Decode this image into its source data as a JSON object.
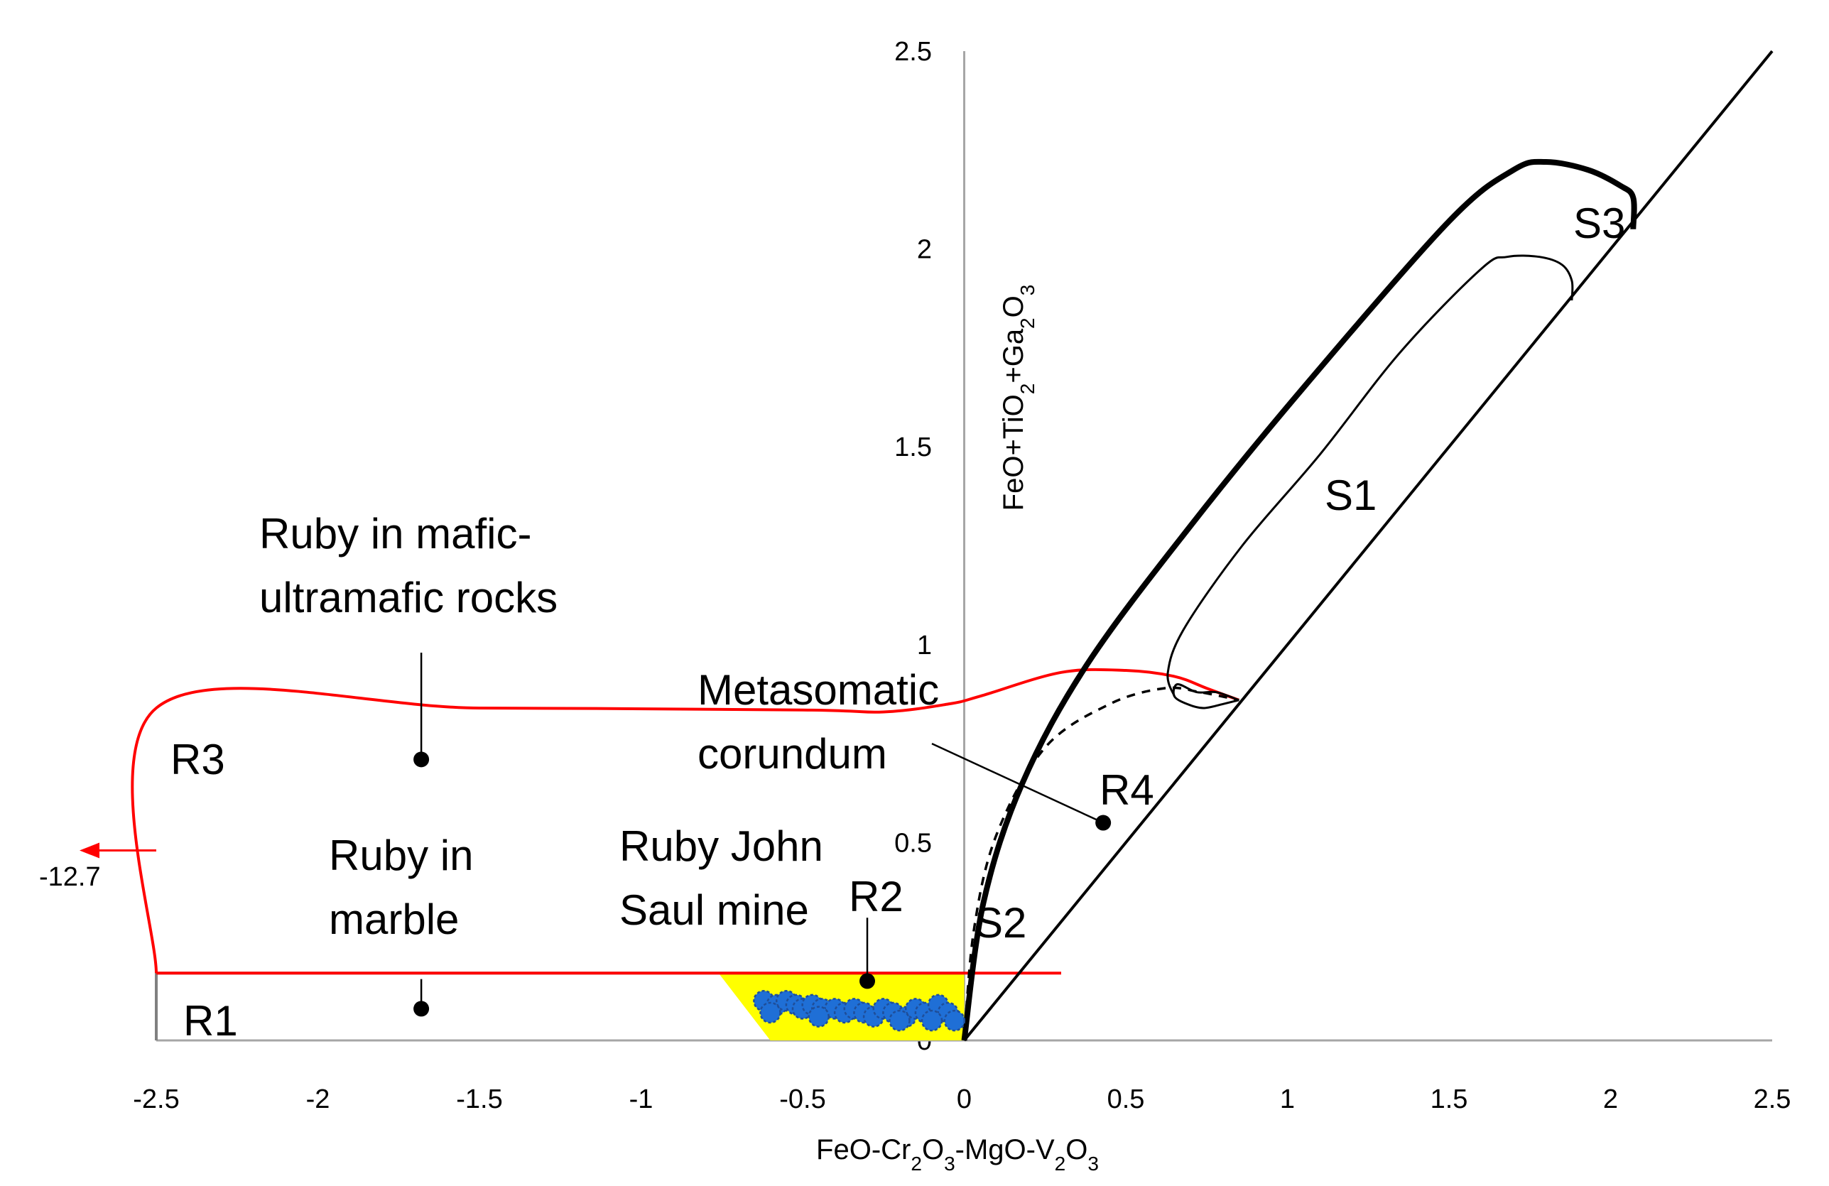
{
  "chart_data": {
    "type": "scatter",
    "title": "",
    "xlabel": {
      "parts": [
        "FeO-Cr",
        "2",
        "O",
        "3",
        "-MgO-V",
        "2",
        "O",
        "3"
      ]
    },
    "ylabel": {
      "parts": [
        "FeO+TiO",
        "2",
        "+Ga",
        "2",
        "O",
        "3"
      ]
    },
    "xlim": [
      -2.5,
      2.5
    ],
    "ylim": [
      0,
      2.5
    ],
    "x_ticks": [
      "-2.5",
      "-2",
      "-1.5",
      "-1",
      "-0.5",
      "0",
      "0.5",
      "1",
      "1.5",
      "2",
      "2.5"
    ],
    "y_ticks": [
      "0",
      "0.5",
      "1",
      "1.5",
      "2",
      "2.5"
    ],
    "grid": false,
    "colors": {
      "fields": "#000000",
      "r3": "#ff0000",
      "r1": "#808080",
      "r2_fill": "#ffff00",
      "points": "#1f6fd6",
      "points_edge": "#1f4e99"
    },
    "field_labels": {
      "R1": "R1",
      "R2": "R2",
      "R3": "R3",
      "R4": "R4",
      "S1": "S1",
      "S2": "S2",
      "S3": "S3"
    },
    "offscale_arrow": {
      "label": "-12.7",
      "y": 0.48,
      "direction": "left"
    },
    "annotations": {
      "mafic": [
        "Ruby in mafic-",
        "ultramafic rocks"
      ],
      "marble": [
        "Ruby in",
        "marble"
      ],
      "metasomatic": [
        "Metasomatic",
        "corundum"
      ],
      "john_saul": [
        "Ruby John",
        "Saul mine"
      ]
    },
    "markers": [
      {
        "name": "mafic",
        "x": -1.68,
        "y": 0.71
      },
      {
        "name": "marble",
        "x": -1.68,
        "y": 0.08
      },
      {
        "name": "metasomatic",
        "x": 0.43,
        "y": 0.55
      },
      {
        "name": "john_saul",
        "x": -0.3,
        "y": 0.15
      }
    ],
    "series": [
      {
        "name": "Ruby John Saul mine",
        "points": [
          [
            -0.62,
            0.1
          ],
          [
            -0.58,
            0.09
          ],
          [
            -0.55,
            0.1
          ],
          [
            -0.52,
            0.09
          ],
          [
            -0.5,
            0.08
          ],
          [
            -0.47,
            0.09
          ],
          [
            -0.44,
            0.08
          ],
          [
            -0.4,
            0.08
          ],
          [
            -0.37,
            0.07
          ],
          [
            -0.34,
            0.08
          ],
          [
            -0.31,
            0.07
          ],
          [
            -0.28,
            0.06
          ],
          [
            -0.25,
            0.08
          ],
          [
            -0.22,
            0.07
          ],
          [
            -0.18,
            0.06
          ],
          [
            -0.15,
            0.08
          ],
          [
            -0.12,
            0.07
          ],
          [
            -0.08,
            0.09
          ],
          [
            -0.05,
            0.07
          ],
          [
            -0.03,
            0.05
          ],
          [
            -0.6,
            0.07
          ],
          [
            -0.45,
            0.06
          ],
          [
            -0.2,
            0.05
          ],
          [
            -0.1,
            0.05
          ]
        ]
      }
    ],
    "fields": {
      "S3_outline": [
        [
          0,
          0
        ],
        [
          0.06,
          0.35
        ],
        [
          0.18,
          0.65
        ],
        [
          0.38,
          0.95
        ],
        [
          0.7,
          1.3
        ],
        [
          1.05,
          1.65
        ],
        [
          1.5,
          2.07
        ],
        [
          1.7,
          2.2
        ],
        [
          1.8,
          2.22
        ],
        [
          1.93,
          2.2
        ],
        [
          2.03,
          2.16
        ],
        [
          2.07,
          2.13
        ],
        [
          2.07,
          2.05
        ]
      ],
      "S1_outline": [
        [
          0.65,
          0.87
        ],
        [
          0.63,
          0.93
        ],
        [
          0.68,
          1.04
        ],
        [
          0.86,
          1.25
        ],
        [
          1.1,
          1.48
        ],
        [
          1.35,
          1.74
        ],
        [
          1.6,
          1.95
        ],
        [
          1.68,
          1.98
        ],
        [
          1.78,
          1.98
        ],
        [
          1.85,
          1.96
        ],
        [
          1.88,
          1.92
        ],
        [
          1.88,
          1.87
        ]
      ],
      "S1_lower_lobe": [
        [
          0.85,
          0.86
        ],
        [
          0.8,
          0.85
        ],
        [
          0.74,
          0.84
        ],
        [
          0.69,
          0.85
        ],
        [
          0.65,
          0.87
        ],
        [
          0.66,
          0.9
        ],
        [
          0.72,
          0.88
        ],
        [
          0.78,
          0.88
        ],
        [
          0.85,
          0.86
        ]
      ],
      "S2_dashed": [
        [
          0,
          0
        ],
        [
          0.03,
          0.28
        ],
        [
          0.1,
          0.52
        ],
        [
          0.25,
          0.74
        ],
        [
          0.45,
          0.85
        ],
        [
          0.62,
          0.89
        ],
        [
          0.73,
          0.88
        ],
        [
          0.85,
          0.86
        ]
      ],
      "R3_outline": [
        [
          -2.5,
          0.17
        ],
        [
          -2.5,
          0.84
        ],
        [
          -1.5,
          0.84
        ],
        [
          -0.5,
          0.835
        ],
        [
          -0.25,
          0.83
        ],
        [
          -0.05,
          0.85
        ],
        [
          0.05,
          0.87
        ],
        [
          0.3,
          0.93
        ],
        [
          0.5,
          0.935
        ],
        [
          0.65,
          0.92
        ],
        [
          0.75,
          0.89
        ],
        [
          0.85,
          0.86
        ]
      ],
      "R3_bottom": [
        [
          -2.5,
          0.17
        ],
        [
          0.3,
          0.17
        ]
      ],
      "R1_outline": [
        [
          -2.5,
          0.0
        ],
        [
          -2.5,
          0.17
        ],
        [
          0.0,
          0.17
        ]
      ],
      "R2_fill": [
        [
          -0.76,
          0.17
        ],
        [
          0.0,
          0.17
        ],
        [
          0.0,
          0.0
        ],
        [
          -0.6,
          0.0
        ]
      ],
      "diagonal": [
        [
          0,
          0
        ],
        [
          2.5,
          2.5
        ]
      ]
    }
  }
}
